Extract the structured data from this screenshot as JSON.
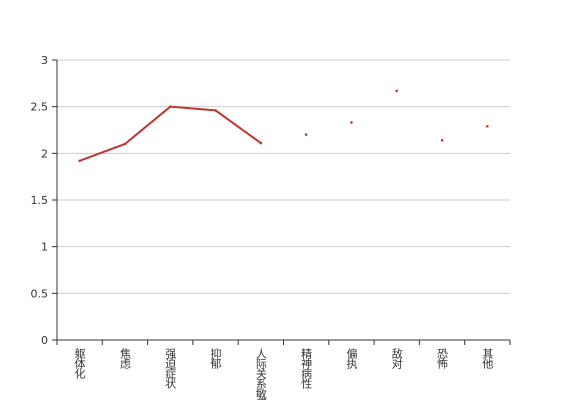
{
  "chart_data": {
    "type": "line",
    "categories": [
      "躯体化",
      "焦虑",
      "强迫症状",
      "抑郁",
      "人际关系敏感",
      "精神病性",
      "偏执",
      "敌对",
      "恐怖",
      "其他"
    ],
    "values": [
      1.92,
      2.1,
      2.5,
      2.46,
      2.11,
      2.2,
      2.33,
      2.67,
      2.14,
      2.29
    ],
    "color": "#c23531",
    "ylim": [
      0,
      3
    ],
    "yticks": [
      0,
      0.5,
      1,
      1.5,
      2,
      2.5,
      3
    ],
    "grid": true
  }
}
